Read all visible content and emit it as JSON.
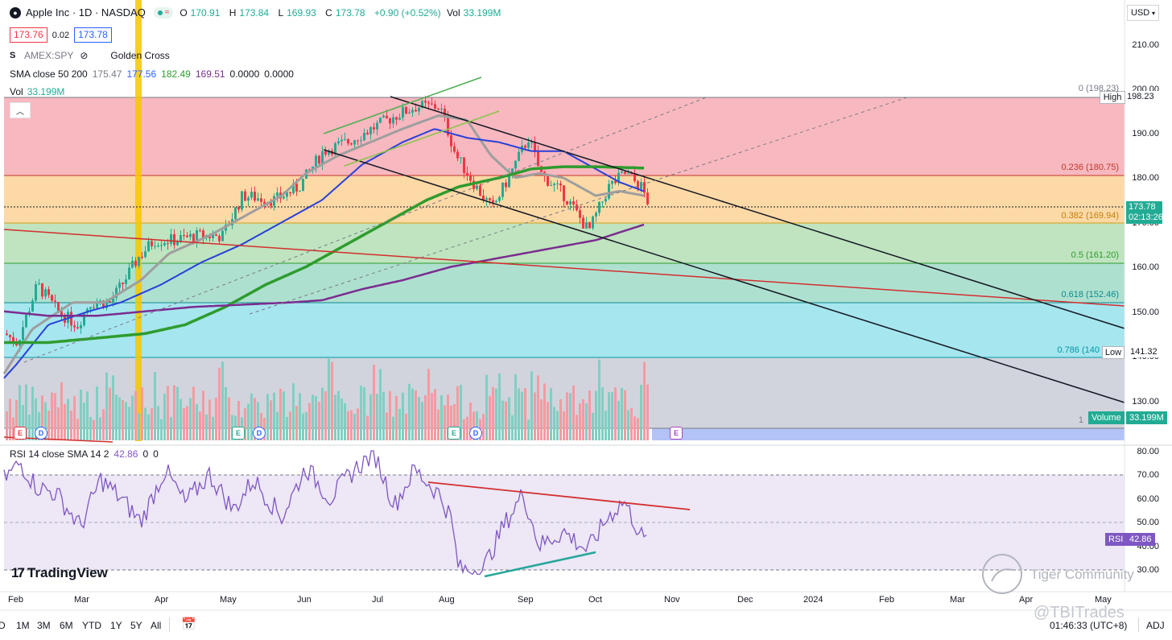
{
  "header": {
    "symbol_title": "Apple Inc · 1D · NASDAQ",
    "ohlc": [
      {
        "label": "O",
        "value": "170.91"
      },
      {
        "label": "H",
        "value": "173.84"
      },
      {
        "label": "L",
        "value": "169.93"
      },
      {
        "label": "C",
        "value": "173.78"
      }
    ],
    "change": "+0.90 (+0.52%)",
    "vol_label": "Vol",
    "vol_value": "33.199M",
    "bid": "173.76",
    "spread": "0.02",
    "ask": "173.78",
    "compare_symbol": "AMEX:SPY",
    "indicator_golden_cross": "Golden Cross",
    "sma_label": "SMA close 50 200",
    "sma_values": [
      "175.47",
      "177.56",
      "182.49",
      "169.51",
      "0.0000",
      "0.0000"
    ],
    "vol_row_label": "Vol",
    "vol_row_value": "33.199M",
    "currency": "USD"
  },
  "price_axis": [
    "210.00",
    "200.00",
    "190.00",
    "180.00",
    "170.00",
    "160.00",
    "150.00",
    "140.00",
    "130.00"
  ],
  "price_tags": {
    "high_label": "High",
    "high_value": "198.23",
    "last_price": "173.78",
    "countdown": "02:13:26",
    "low_label": "Low",
    "low_value": "141.32",
    "volume_label": "Volume",
    "volume_value": "33.199M"
  },
  "fib_levels": [
    {
      "label": "0 (198.23)"
    },
    {
      "label": "0.236 (180.75)"
    },
    {
      "label": "0.382 (169.94)"
    },
    {
      "label": "0.5 (161.20)"
    },
    {
      "label": "0.618 (152.46)"
    },
    {
      "label": "0.786 (140"
    },
    {
      "label": "1"
    }
  ],
  "rsi": {
    "label": "RSI 14 close SMA 14 2",
    "value": "42.86",
    "v2": "0",
    "v3": "0",
    "axis": [
      "80.00",
      "70.00",
      "60.00",
      "50.00",
      "40.00",
      "30.00"
    ],
    "tag_label": "RSI",
    "tag_value": "42.86"
  },
  "time_axis": [
    "Feb",
    "Mar",
    "Apr",
    "May",
    "Jun",
    "Jul",
    "Aug",
    "Sep",
    "Oct",
    "Nov",
    "Dec",
    "2024",
    "Feb",
    "Mar",
    "Apr",
    "May"
  ],
  "events": [
    "E",
    "D",
    "E",
    "D",
    "E",
    "D",
    "E"
  ],
  "branding": {
    "logo_text": "TradingView",
    "watermark": "Tiger Community",
    "handle": "@TBITrades"
  },
  "timeframes": [
    "D",
    "1M",
    "3M",
    "6M",
    "YTD",
    "1Y",
    "5Y",
    "All"
  ],
  "footer": {
    "clock": "01:46:33 (UTC+8)",
    "adj": "ADJ"
  },
  "colors": {
    "up": "#22ab94",
    "down": "#f23645",
    "sma50": "#2962ff",
    "sma200": "#2e9c2e",
    "sma_gray": "#9e9e9e",
    "sma_purple": "#7b2c8f",
    "rsi": "#7e57c2"
  }
}
